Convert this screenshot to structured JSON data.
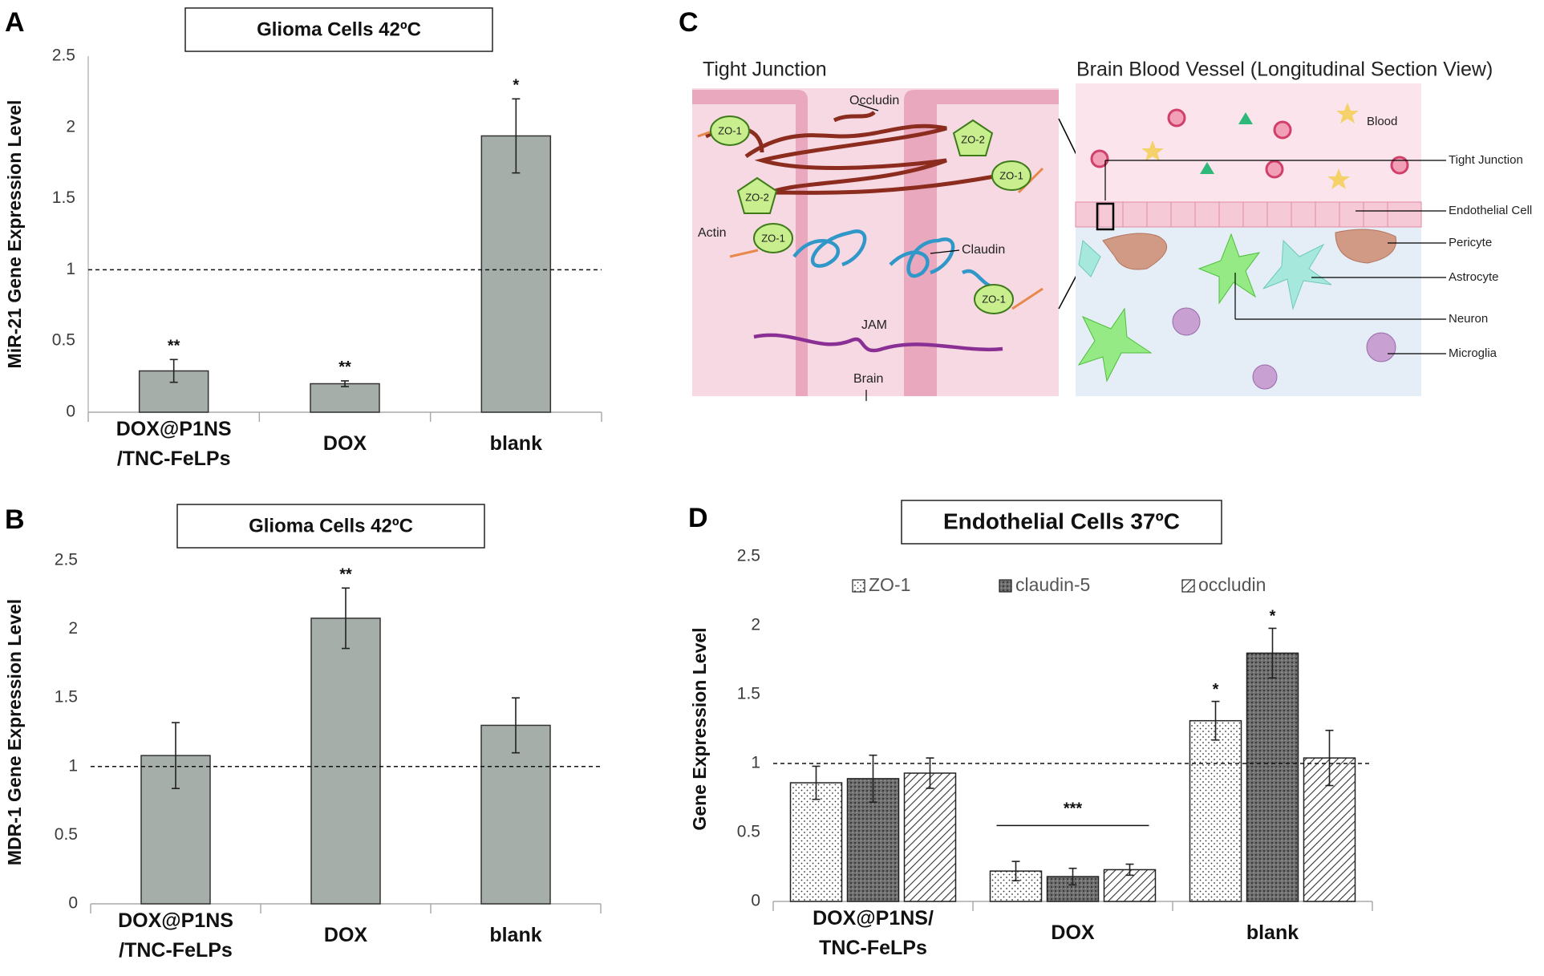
{
  "panel_labels": [
    "A",
    "B",
    "C",
    "D"
  ],
  "chart_data": [
    {
      "type": "bar",
      "title": "Glioma Cells 42ºC",
      "ylabel": "MiR-21 Gene Expression Level",
      "categories": [
        "DOX@P1NS /TNC-FeLPs",
        "DOX",
        "blank"
      ],
      "values": [
        0.29,
        0.2,
        1.94
      ],
      "errors": [
        0.08,
        0.02,
        0.26
      ],
      "annotations": [
        "**",
        "**",
        "*"
      ],
      "color": "#a6aea9",
      "reference_line": 1,
      "ylim": [
        0,
        2.5
      ],
      "yticks": [
        0,
        0.5,
        1,
        1.5,
        2,
        2.5
      ],
      "grid": false
    },
    {
      "type": "bar",
      "title": "Glioma Cells 42ºC",
      "ylabel": "MDR-1 Gene Expression Level",
      "categories": [
        "DOX@P1NS /TNC-FeLPs",
        "DOX",
        "blank"
      ],
      "values": [
        1.08,
        2.08,
        1.3
      ],
      "errors": [
        0.24,
        0.22,
        0.2
      ],
      "annotations": [
        null,
        "**",
        null
      ],
      "color": "#a6aea9",
      "reference_line": 1,
      "ylim": [
        0,
        2.5
      ],
      "yticks": [
        0,
        0.5,
        1,
        1.5,
        2,
        2.5
      ],
      "grid": false
    },
    {
      "type": "grouped_bar",
      "title": "Endothelial Cells 37ºC",
      "ylabel": "Gene Expression Level",
      "categories": [
        "DOX@P1NS/ TNC-FeLPs",
        "DOX",
        "blank"
      ],
      "series": [
        {
          "name": "ZO-1",
          "pattern": "dots",
          "values": [
            0.86,
            0.22,
            1.31
          ],
          "errors": [
            0.12,
            0.07,
            0.14
          ],
          "annotations": [
            null,
            null,
            "*"
          ]
        },
        {
          "name": "claudin-5",
          "pattern": "crosshatch",
          "values": [
            0.89,
            0.18,
            1.8
          ],
          "errors": [
            0.17,
            0.06,
            0.18
          ],
          "annotations": [
            null,
            null,
            "*"
          ]
        },
        {
          "name": "occludin",
          "pattern": "diagonal",
          "values": [
            0.93,
            0.23,
            1.04
          ],
          "errors": [
            0.11,
            0.04,
            0.2
          ],
          "annotations": [
            null,
            null,
            null
          ]
        }
      ],
      "group_annotations": [
        null,
        "***",
        null
      ],
      "reference_line": 1,
      "ylim": [
        0,
        2.5
      ],
      "yticks": [
        0,
        0.5,
        1,
        1.5,
        2,
        2.5
      ],
      "grid": false,
      "legend": "top"
    }
  ],
  "diagram": {
    "titles": [
      "Tight Junction",
      "Brain Blood Vessel (Longitudinal Section View)"
    ],
    "labels": [
      "Occludin",
      "ZO-1",
      "ZO-2",
      "ZO-1",
      "ZO-2",
      "Actin",
      "ZO-1",
      "Claudin",
      "ZO-1",
      "JAM",
      "Brain",
      "Blood",
      "Tight Junction",
      "Endothelial Cell",
      "Pericyte",
      "Astrocyte",
      "Neuron",
      "Microglia"
    ]
  }
}
